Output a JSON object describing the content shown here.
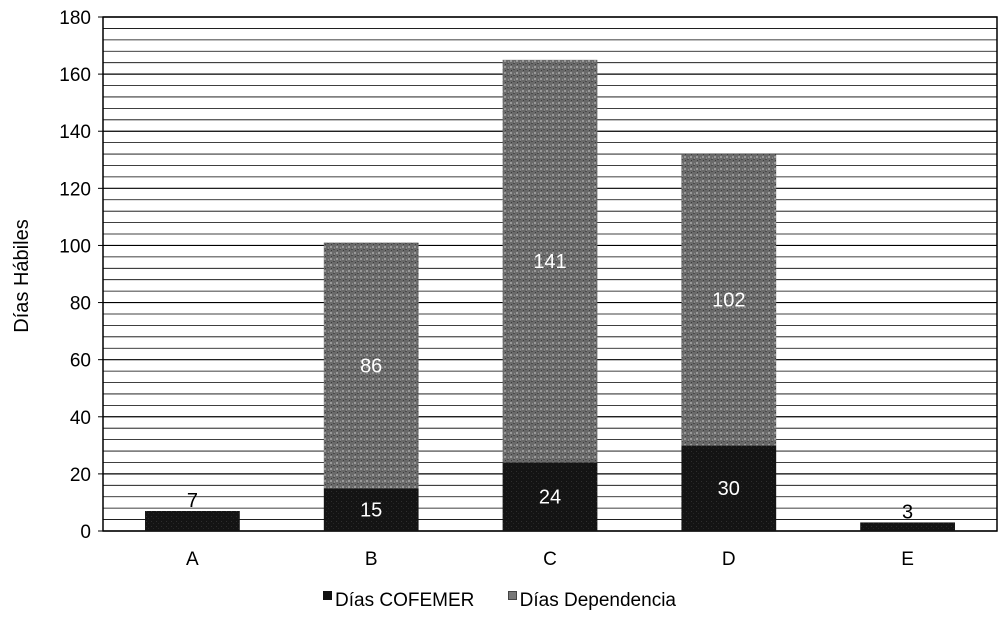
{
  "chart_data": {
    "type": "bar",
    "stacked": true,
    "categories": [
      "A",
      "B",
      "C",
      "D",
      "E"
    ],
    "series": [
      {
        "name": "Días COFEMER",
        "values": [
          7,
          15,
          24,
          30,
          3
        ],
        "color": "#111111"
      },
      {
        "name": "Días Dependencia",
        "values": [
          0,
          86,
          141,
          102,
          0
        ],
        "color": "#6e6e6e"
      }
    ],
    "data_labels": [
      [
        "7",
        "15",
        "24",
        "30",
        "3"
      ],
      [
        "",
        "86",
        "141",
        "102",
        ""
      ]
    ],
    "ylabel": "Días Hábiles",
    "ylim": [
      0,
      180
    ],
    "yticks": [
      0,
      20,
      40,
      60,
      80,
      100,
      120,
      140,
      160,
      180
    ],
    "grid": true,
    "legend": "bottom"
  }
}
